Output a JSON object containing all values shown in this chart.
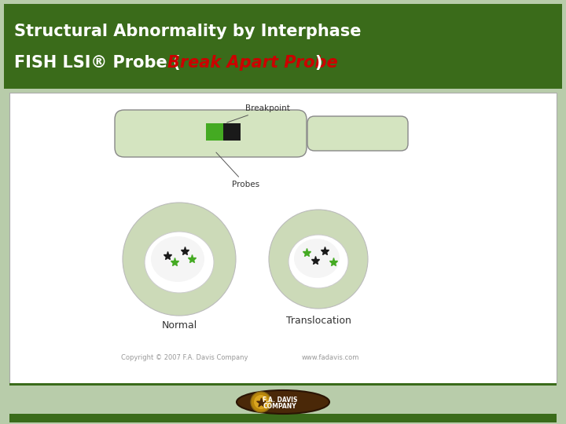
{
  "title_line1": "Structural Abnormality by Interphase",
  "title_line2_white": "FISH LSI® Probe (",
  "title_line2_red": "Break Apart Probe",
  "title_line2_white3": ")",
  "title_bg_color": "#3a6b1a",
  "title_text_color": "#ffffff",
  "title_red_color": "#cc0000",
  "bg_color": "#b8ccaa",
  "border_color": "#aaaaaa",
  "chrom_fill": "#d4e4c0",
  "chrom_border": "#888888",
  "probe_green": "#44aa22",
  "probe_black": "#1a1a1a",
  "cell_outer_fill": "#ccdab8",
  "label_color": "#333333",
  "copyright_color": "#999999",
  "title_fontsize": 15,
  "label_fontsize": 9,
  "copyright_fontsize": 6
}
